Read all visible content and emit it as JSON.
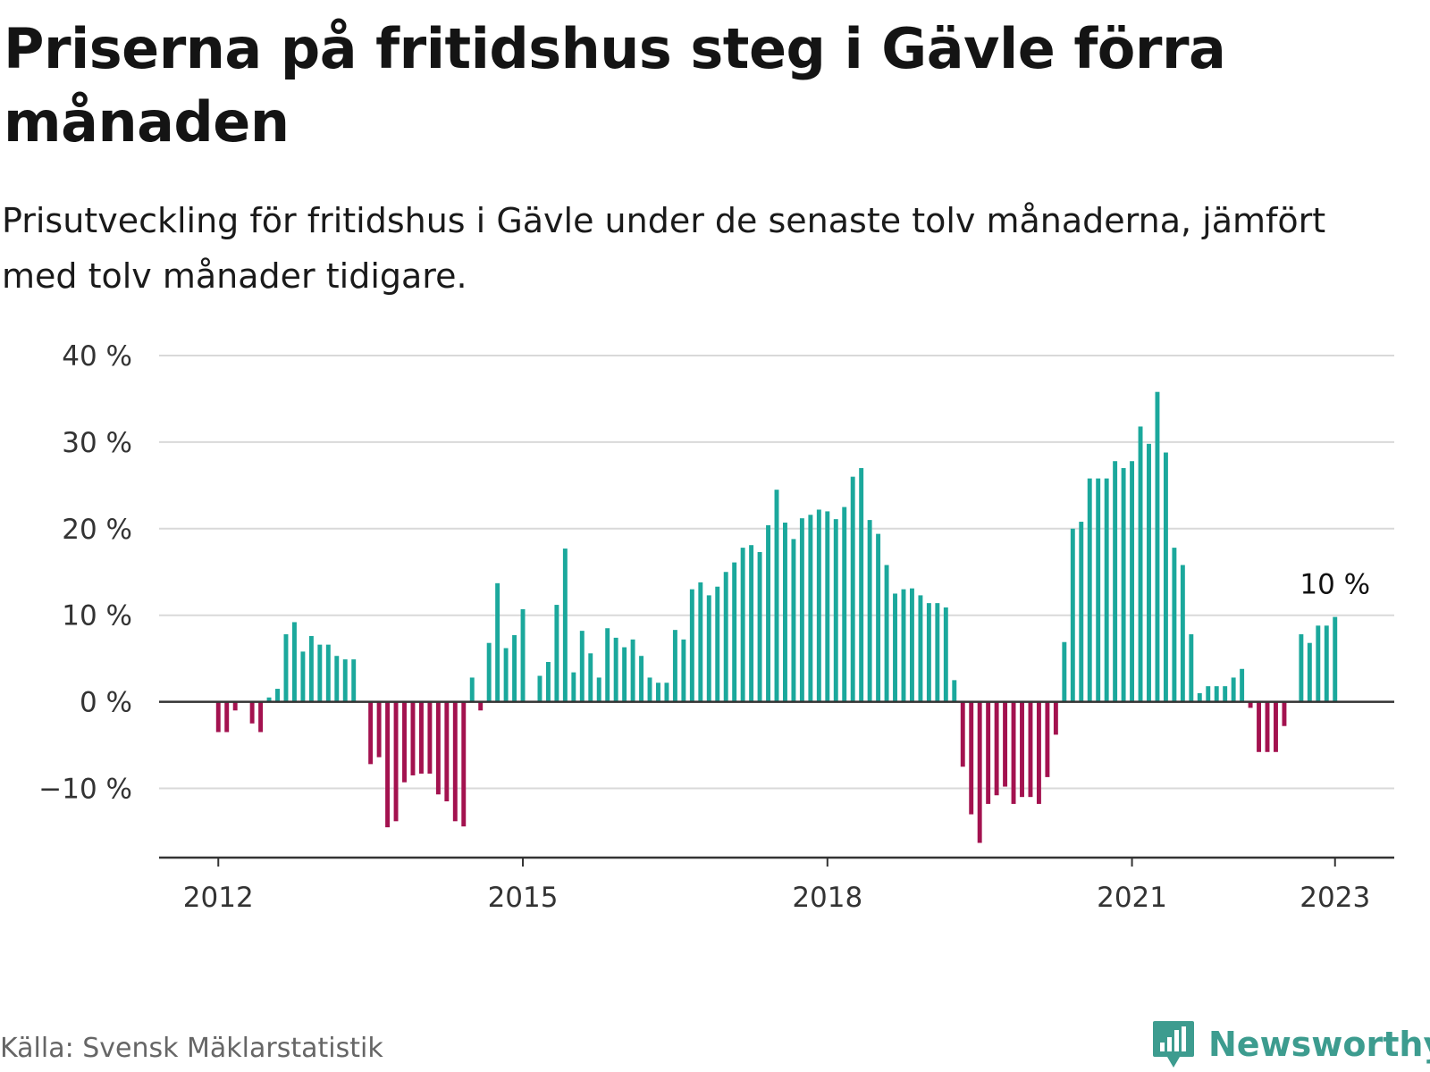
{
  "header": {
    "title": "Priserna på fritidshus steg i Gävle förra månaden",
    "subtitle": "Prisutveckling för fritidshus i Gävle under de senaste tolv månaderna, jämfört med tolv månader tidigare."
  },
  "footer": {
    "source": "Källa: Svensk Mäklarstatistik",
    "brand": "Newsworthy",
    "brand_icon": "newsworthy-bar-chart-icon"
  },
  "colors": {
    "positive": "#1ba89c",
    "negative": "#a3124f",
    "grid": "#d9d9d9",
    "axis": "#333333",
    "brand": "#3d9c8f"
  },
  "chart_data": {
    "type": "bar",
    "ylim": [
      -18,
      40
    ],
    "y_ticks": [
      -10,
      0,
      10,
      20,
      30,
      40
    ],
    "y_tick_labels": [
      "−10 %",
      "0 %",
      "10 %",
      "20 %",
      "30 %",
      "40 %"
    ],
    "x_tick_labels": [
      "2012",
      "2015",
      "2018",
      "2021",
      "2023"
    ],
    "x_tick_positions": [
      "2012-01",
      "2015-01",
      "2018-01",
      "2021-01",
      "2023-01"
    ],
    "x": [
      "2012-01",
      "2012-02",
      "2012-03",
      "2012-04",
      "2012-05",
      "2012-06",
      "2012-07",
      "2012-08",
      "2012-09",
      "2012-10",
      "2012-11",
      "2012-12",
      "2013-01",
      "2013-02",
      "2013-03",
      "2013-04",
      "2013-05",
      "2013-06",
      "2013-07",
      "2013-08",
      "2013-09",
      "2013-10",
      "2013-11",
      "2013-12",
      "2014-01",
      "2014-02",
      "2014-03",
      "2014-04",
      "2014-05",
      "2014-06",
      "2014-07",
      "2014-08",
      "2014-09",
      "2014-10",
      "2014-11",
      "2014-12",
      "2015-01",
      "2015-02",
      "2015-03",
      "2015-04",
      "2015-05",
      "2015-06",
      "2015-07",
      "2015-08",
      "2015-09",
      "2015-10",
      "2015-11",
      "2015-12",
      "2016-01",
      "2016-02",
      "2016-03",
      "2016-04",
      "2016-05",
      "2016-06",
      "2016-07",
      "2016-08",
      "2016-09",
      "2016-10",
      "2016-11",
      "2016-12",
      "2017-01",
      "2017-02",
      "2017-03",
      "2017-04",
      "2017-05",
      "2017-06",
      "2017-07",
      "2017-08",
      "2017-09",
      "2017-10",
      "2017-11",
      "2017-12",
      "2018-01",
      "2018-02",
      "2018-03",
      "2018-04",
      "2018-05",
      "2018-06",
      "2018-07",
      "2018-08",
      "2018-09",
      "2018-10",
      "2018-11",
      "2018-12",
      "2019-01",
      "2019-02",
      "2019-03",
      "2019-04",
      "2019-05",
      "2019-06",
      "2019-07",
      "2019-08",
      "2019-09",
      "2019-10",
      "2019-11",
      "2019-12",
      "2020-01",
      "2020-02",
      "2020-03",
      "2020-04",
      "2020-05",
      "2020-06",
      "2020-07",
      "2020-08",
      "2020-09",
      "2020-10",
      "2020-11",
      "2020-12",
      "2021-01",
      "2021-02",
      "2021-03",
      "2021-04",
      "2021-05",
      "2021-06",
      "2021-07",
      "2021-08",
      "2021-09",
      "2021-10",
      "2021-11",
      "2021-12",
      "2022-01",
      "2022-02",
      "2022-03",
      "2022-04",
      "2022-05",
      "2022-06",
      "2022-07",
      "2022-08",
      "2022-09",
      "2022-10",
      "2022-11",
      "2022-12",
      "2023-01"
    ],
    "values": [
      -3.5,
      -3.5,
      -1,
      null,
      -2.5,
      -3.5,
      0.5,
      1.5,
      7.8,
      9.2,
      5.8,
      7.6,
      6.6,
      6.6,
      5.3,
      4.9,
      4.9,
      null,
      -7.2,
      -6.4,
      -14.5,
      -13.8,
      -9.3,
      -8.5,
      -8.3,
      -8.3,
      -10.7,
      -11.5,
      -13.8,
      -14.4,
      2.8,
      -1,
      6.8,
      13.7,
      6.2,
      7.7,
      10.7,
      null,
      3,
      4.6,
      11.2,
      17.7,
      3.4,
      8.2,
      5.6,
      2.8,
      8.5,
      7.4,
      6.3,
      7.2,
      5.3,
      2.8,
      2.2,
      2.2,
      8.3,
      7.2,
      13,
      13.8,
      12.3,
      13.3,
      15,
      16.1,
      17.8,
      18.1,
      17.3,
      20.4,
      24.5,
      20.7,
      18.8,
      21.2,
      21.6,
      22.2,
      22,
      21.1,
      22.5,
      26,
      27,
      21,
      19.4,
      15.8,
      12.5,
      13,
      13.1,
      12.3,
      11.4,
      11.4,
      10.9,
      2.5,
      -7.5,
      -13,
      -16.3,
      -11.8,
      -10.8,
      -9.8,
      -11.8,
      -11,
      -11,
      -11.8,
      -8.7,
      -3.8,
      6.9,
      20,
      20.8,
      25.8,
      25.8,
      25.8,
      27.8,
      27,
      27.8,
      31.8,
      29.8,
      35.8,
      28.8,
      17.8,
      15.8,
      7.8,
      1,
      1.8,
      1.8,
      1.8,
      2.8,
      3.8,
      -0.7,
      -5.8,
      -5.8,
      -5.8,
      -2.8,
      null,
      7.8,
      6.8,
      8.8,
      8.8,
      9.8
    ],
    "annotation": {
      "label": "10 %",
      "at": "2023-01",
      "value": 9.8
    }
  }
}
